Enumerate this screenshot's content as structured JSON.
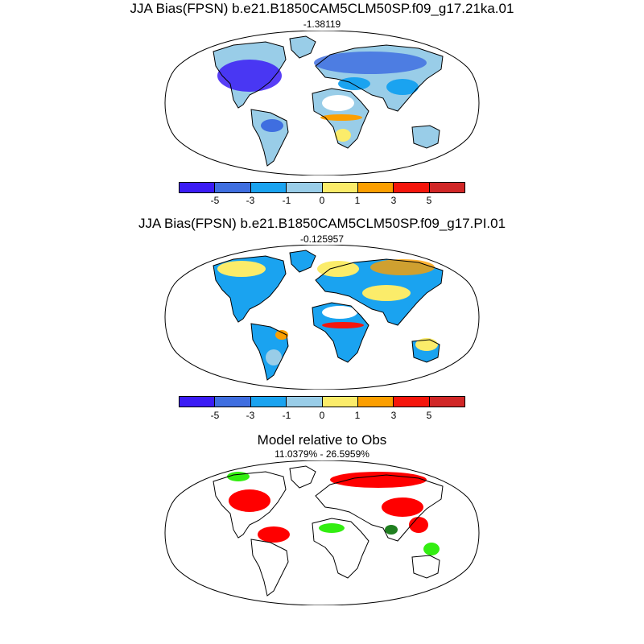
{
  "panels": [
    {
      "title": "JJA Bias(FPSN) b.e21.B1850CAM5CLM50SP.f09_g17.21ka.01",
      "subtitle": "-1.38119"
    },
    {
      "title": "JJA Bias(FPSN) b.e21.B1850CAM5CLM50SP.f09_g17.PI.01",
      "subtitle": "-0.125957"
    },
    {
      "title": "Model relative to Obs",
      "subtitle": "11.0379% - 26.5959%"
    }
  ],
  "colorbar": {
    "colors": [
      "#3b1cf5",
      "#3f6ee0",
      "#1aa3f0",
      "#99cde8",
      "#fbec6a",
      "#fc9f00",
      "#f5160c",
      "#d12727"
    ],
    "tick_labels": [
      "-5",
      "-3",
      "-1",
      "0",
      "1",
      "3",
      "5"
    ]
  },
  "legend_colors": {
    "relative_red": "#ff0000",
    "relative_green": "#33ee11",
    "relative_darkgreen": "#1f7f1f"
  }
}
